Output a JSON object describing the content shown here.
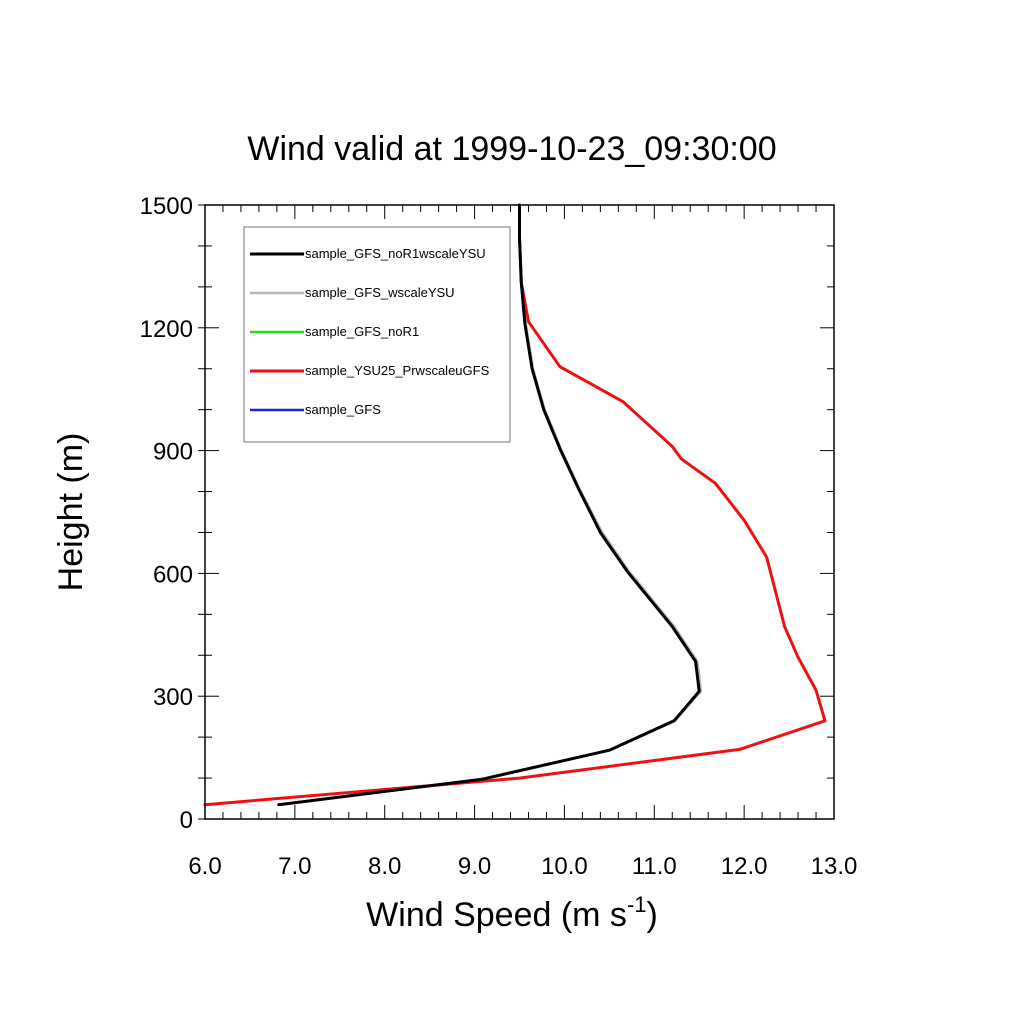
{
  "chart_data": {
    "type": "line",
    "title": "Wind valid at 1999-10-23_09:30:00",
    "xlabel": "Wind Speed (m s",
    "xlabel_sup": "-1",
    "xlabel_end": ")",
    "ylabel": "Height (m)",
    "xlim": [
      6.0,
      13.0
    ],
    "ylim": [
      0,
      1500
    ],
    "x_ticks": [
      6.0,
      7.0,
      8.0,
      9.0,
      10.0,
      11.0,
      12.0,
      13.0
    ],
    "x_tick_labels": [
      "6.0",
      "7.0",
      "8.0",
      "9.0",
      "10.0",
      "11.0",
      "12.0",
      "13.0"
    ],
    "y_ticks": [
      0,
      300,
      600,
      900,
      1200,
      1500
    ],
    "y_tick_labels": [
      "0",
      "300",
      "600",
      "900",
      "1200",
      "1500"
    ],
    "legend_position": "top-left",
    "grid": false,
    "series": [
      {
        "name": "sample_GFS_noR1wscaleYSU",
        "color": "#000000",
        "width": 3,
        "x": [
          6.82,
          9.08,
          10.5,
          11.22,
          11.5,
          11.46,
          11.2,
          10.7,
          10.4,
          10.15,
          9.95,
          9.77,
          9.64,
          9.56,
          9.52,
          9.5,
          9.5
        ],
        "y": [
          35,
          97,
          168,
          240,
          312,
          385,
          470,
          605,
          700,
          810,
          905,
          1000,
          1100,
          1210,
          1310,
          1420,
          1500
        ]
      },
      {
        "name": "sample_GFS_wscaleYSU",
        "color": "#b8b8b8",
        "width": 2.5,
        "x": [
          6.82,
          9.08,
          10.5,
          11.23,
          11.52,
          11.48,
          11.22,
          10.72,
          10.42,
          10.16,
          9.96,
          9.78,
          9.65,
          9.57,
          9.52,
          9.5,
          9.5
        ],
        "y": [
          35,
          97,
          168,
          240,
          312,
          385,
          470,
          605,
          700,
          810,
          905,
          1000,
          1100,
          1210,
          1310,
          1420,
          1500
        ]
      },
      {
        "name": "sample_GFS_noR1",
        "color": "#22dd22",
        "width": 2.5,
        "x": [
          6.82,
          9.08,
          10.5,
          11.22,
          11.5,
          11.46,
          11.2,
          10.7,
          10.4,
          10.15,
          9.95,
          9.77,
          9.64,
          9.56,
          9.52,
          9.5,
          9.5
        ],
        "y": [
          35,
          97,
          168,
          240,
          312,
          385,
          470,
          605,
          700,
          810,
          905,
          1000,
          1100,
          1210,
          1310,
          1420,
          1500
        ]
      },
      {
        "name": "sample_YSU25_PrwscaleuGFS",
        "color": "#ee1111",
        "width": 3,
        "x": [
          6.0,
          9.5,
          11.95,
          12.9,
          12.8,
          12.6,
          12.45,
          12.25,
          12.0,
          11.68,
          11.3,
          11.2,
          10.65,
          9.95,
          9.6,
          9.52,
          9.5,
          9.5
        ],
        "y": [
          35,
          100,
          170,
          240,
          315,
          395,
          470,
          640,
          730,
          820,
          880,
          910,
          1020,
          1105,
          1215,
          1310,
          1420,
          1500
        ]
      },
      {
        "name": "sample_GFS",
        "color": "#2222dd",
        "width": 2.5,
        "x": [
          6.82,
          9.08,
          10.5,
          11.22,
          11.5,
          11.46,
          11.2,
          10.7,
          10.4,
          10.15,
          9.95,
          9.77,
          9.64,
          9.56,
          9.52,
          9.5,
          9.5
        ],
        "y": [
          35,
          97,
          168,
          240,
          312,
          385,
          470,
          605,
          700,
          810,
          905,
          1000,
          1100,
          1210,
          1310,
          1420,
          1500
        ]
      }
    ],
    "draw_order": [
      4,
      2,
      1,
      3,
      0
    ]
  }
}
